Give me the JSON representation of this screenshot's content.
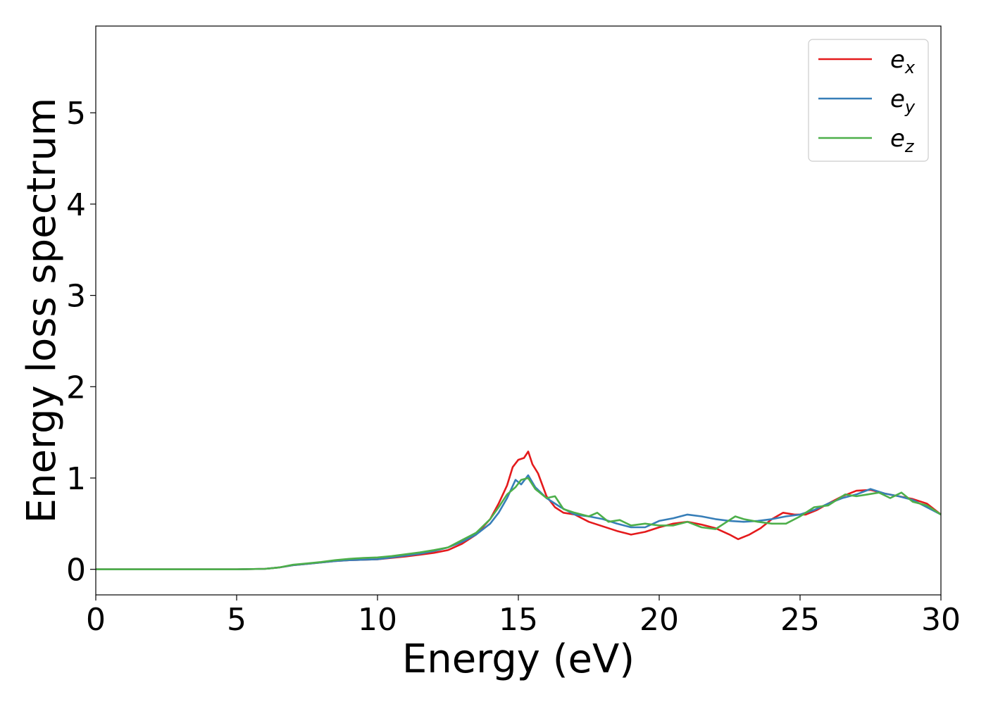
{
  "chart_data": {
    "type": "line",
    "xlabel": "Energy (eV)",
    "ylabel": "Energy loss spectrum",
    "xlim": [
      0,
      30
    ],
    "ylim": [
      -0.28,
      5.95
    ],
    "xticks": [
      0,
      5,
      10,
      15,
      20,
      25,
      30
    ],
    "yticks": [
      0,
      1,
      2,
      3,
      4,
      5
    ],
    "grid": false,
    "legend_position": "top-right",
    "series": [
      {
        "name": "e_x",
        "label_base": "e",
        "label_sub": "x",
        "color": "#e41a1c",
        "x": [
          0,
          5,
          6,
          6.5,
          7,
          7.5,
          8,
          8.5,
          9,
          9.5,
          10,
          10.5,
          11,
          11.5,
          12,
          12.5,
          13,
          13.5,
          14,
          14.3,
          14.6,
          14.8,
          15.0,
          15.2,
          15.35,
          15.5,
          15.7,
          16.0,
          16.3,
          16.6,
          17.0,
          17.5,
          18.0,
          18.5,
          19.0,
          19.5,
          20.0,
          20.5,
          21.0,
          21.5,
          22.0,
          22.5,
          22.8,
          23.2,
          23.6,
          24.0,
          24.4,
          24.8,
          25.2,
          25.6,
          26.0,
          26.5,
          27.0,
          27.5,
          28.0,
          28.5,
          29.0,
          29.5,
          30.0
        ],
        "y": [
          0,
          0,
          0.005,
          0.02,
          0.045,
          0.06,
          0.075,
          0.09,
          0.1,
          0.105,
          0.11,
          0.125,
          0.14,
          0.16,
          0.18,
          0.21,
          0.28,
          0.38,
          0.55,
          0.72,
          0.92,
          1.12,
          1.2,
          1.22,
          1.29,
          1.15,
          1.05,
          0.8,
          0.68,
          0.62,
          0.6,
          0.52,
          0.47,
          0.42,
          0.38,
          0.41,
          0.46,
          0.5,
          0.52,
          0.49,
          0.45,
          0.38,
          0.33,
          0.38,
          0.45,
          0.55,
          0.62,
          0.6,
          0.6,
          0.65,
          0.72,
          0.8,
          0.86,
          0.87,
          0.83,
          0.8,
          0.77,
          0.72,
          0.6
        ]
      },
      {
        "name": "e_y",
        "label_base": "e",
        "label_sub": "y",
        "color": "#377eb8",
        "x": [
          0,
          5,
          6,
          6.5,
          7,
          7.5,
          8,
          8.5,
          9,
          9.5,
          10,
          10.5,
          11,
          11.5,
          12,
          12.5,
          13,
          13.5,
          14,
          14.3,
          14.6,
          14.9,
          15.1,
          15.35,
          15.6,
          16.0,
          16.5,
          17.0,
          17.5,
          18.0,
          18.5,
          19.0,
          19.5,
          20.0,
          20.5,
          21.0,
          21.5,
          22.0,
          22.5,
          23.0,
          23.5,
          24.0,
          24.5,
          25.0,
          25.5,
          26.0,
          26.5,
          27.0,
          27.5,
          28.0,
          28.5,
          29.0,
          29.5,
          30.0
        ],
        "y": [
          0,
          0,
          0.005,
          0.02,
          0.045,
          0.06,
          0.075,
          0.09,
          0.1,
          0.105,
          0.11,
          0.13,
          0.15,
          0.17,
          0.2,
          0.24,
          0.3,
          0.38,
          0.5,
          0.62,
          0.78,
          0.98,
          0.93,
          1.03,
          0.9,
          0.78,
          0.68,
          0.6,
          0.58,
          0.55,
          0.5,
          0.46,
          0.46,
          0.53,
          0.56,
          0.6,
          0.58,
          0.55,
          0.53,
          0.52,
          0.53,
          0.55,
          0.58,
          0.6,
          0.65,
          0.72,
          0.78,
          0.82,
          0.88,
          0.83,
          0.8,
          0.76,
          0.68,
          0.6
        ]
      },
      {
        "name": "e_z",
        "label_base": "e",
        "label_sub": "z",
        "color": "#4daf4a",
        "x": [
          0,
          5,
          6,
          6.5,
          7,
          7.5,
          8,
          8.5,
          9,
          9.5,
          10,
          10.5,
          11,
          11.5,
          12,
          12.5,
          13,
          13.5,
          14,
          14.3,
          14.6,
          14.9,
          15.1,
          15.35,
          15.6,
          16.0,
          16.3,
          16.6,
          17.0,
          17.5,
          17.8,
          18.2,
          18.6,
          19.0,
          19.5,
          20.0,
          20.5,
          21.0,
          21.5,
          22.0,
          22.4,
          22.7,
          23.0,
          23.5,
          24.0,
          24.5,
          25.0,
          25.5,
          26.0,
          26.3,
          26.6,
          27.0,
          27.4,
          27.8,
          28.2,
          28.6,
          29.0,
          29.5,
          30.0
        ],
        "y": [
          0,
          0,
          0.005,
          0.02,
          0.05,
          0.065,
          0.08,
          0.1,
          0.115,
          0.125,
          0.13,
          0.145,
          0.165,
          0.185,
          0.21,
          0.24,
          0.32,
          0.4,
          0.55,
          0.68,
          0.82,
          0.9,
          0.98,
          1.0,
          0.88,
          0.78,
          0.8,
          0.66,
          0.62,
          0.58,
          0.62,
          0.52,
          0.54,
          0.48,
          0.5,
          0.48,
          0.48,
          0.52,
          0.46,
          0.44,
          0.52,
          0.58,
          0.55,
          0.52,
          0.5,
          0.5,
          0.58,
          0.68,
          0.7,
          0.76,
          0.82,
          0.8,
          0.82,
          0.84,
          0.78,
          0.84,
          0.74,
          0.7,
          0.6
        ]
      }
    ]
  }
}
